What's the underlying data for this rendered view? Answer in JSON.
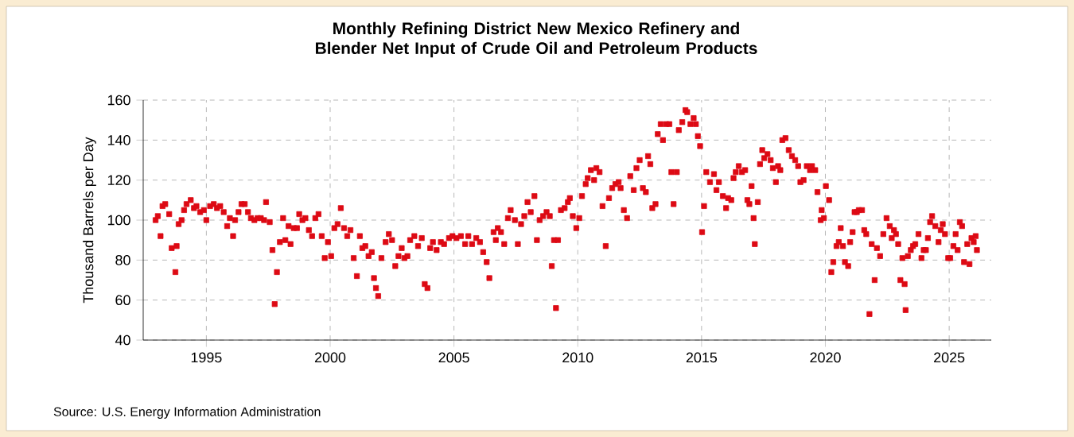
{
  "chart_data": {
    "type": "scatter",
    "title": "Monthly Refining District New Mexico Refinery and Blender Net Input of Crude Oil and Petroleum Products",
    "ylabel": "Thousand Barrels per Day",
    "annotations": [
      "Source: U.S. Energy Information Administration"
    ],
    "xlim": [
      1992.45,
      2026.7
    ],
    "xticks": [
      1995,
      2000,
      2005,
      2010,
      2015,
      2020,
      2025
    ],
    "ylim": [
      40,
      160
    ],
    "yticks": [
      40,
      60,
      80,
      100,
      120,
      140,
      160
    ],
    "grid": true,
    "marker": "square",
    "series": [
      {
        "color": "#dd0a14",
        "x": [
          1992.95,
          1993.04,
          1993.15,
          1993.23,
          1993.34,
          1993.5,
          1993.6,
          1993.75,
          1993.8,
          1993.88,
          1994.0,
          1994.1,
          1994.2,
          1994.37,
          1994.5,
          1994.6,
          1994.75,
          1994.9,
          1995.0,
          1995.15,
          1995.3,
          1995.43,
          1995.56,
          1995.7,
          1995.84,
          1995.95,
          1996.08,
          1996.16,
          1996.3,
          1996.42,
          1996.55,
          1996.68,
          1996.8,
          1996.94,
          1997.07,
          1997.2,
          1997.33,
          1997.41,
          1997.56,
          1997.67,
          1997.76,
          1997.85,
          1997.97,
          1998.1,
          1998.19,
          1998.32,
          1998.4,
          1998.53,
          1998.66,
          1998.75,
          1998.88,
          1999.0,
          1999.14,
          1999.27,
          1999.4,
          1999.53,
          1999.66,
          1999.78,
          1999.91,
          2000.04,
          2000.17,
          2000.3,
          2000.43,
          2000.56,
          2000.69,
          2000.82,
          2000.95,
          2001.08,
          2001.2,
          2001.3,
          2001.42,
          2001.55,
          2001.68,
          2001.77,
          2001.85,
          2001.94,
          2002.07,
          2002.24,
          2002.37,
          2002.5,
          2002.63,
          2002.76,
          2002.89,
          2003.0,
          2003.12,
          2003.23,
          2003.4,
          2003.55,
          2003.7,
          2003.82,
          2003.93,
          2004.04,
          2004.15,
          2004.3,
          2004.47,
          2004.6,
          2004.8,
          2004.94,
          2005.1,
          2005.28,
          2005.45,
          2005.58,
          2005.73,
          2005.9,
          2006.05,
          2006.18,
          2006.32,
          2006.43,
          2006.6,
          2006.69,
          2006.77,
          2006.9,
          2007.03,
          2007.18,
          2007.29,
          2007.46,
          2007.58,
          2007.71,
          2007.84,
          2007.97,
          2008.1,
          2008.25,
          2008.35,
          2008.46,
          2008.6,
          2008.74,
          2008.87,
          2008.95,
          2009.04,
          2009.12,
          2009.2,
          2009.32,
          2009.47,
          2009.6,
          2009.68,
          2009.8,
          2009.94,
          2010.06,
          2010.17,
          2010.32,
          2010.4,
          2010.53,
          2010.66,
          2010.75,
          2010.88,
          2011.0,
          2011.13,
          2011.26,
          2011.39,
          2011.52,
          2011.65,
          2011.73,
          2011.86,
          2011.99,
          2012.12,
          2012.26,
          2012.37,
          2012.5,
          2012.63,
          2012.75,
          2012.84,
          2012.93,
          2013.01,
          2013.14,
          2013.23,
          2013.35,
          2013.44,
          2013.57,
          2013.7,
          2013.78,
          2013.87,
          2014.0,
          2014.08,
          2014.22,
          2014.35,
          2014.42,
          2014.55,
          2014.68,
          2014.77,
          2014.85,
          2014.94,
          2015.02,
          2015.1,
          2015.19,
          2015.34,
          2015.5,
          2015.6,
          2015.7,
          2015.86,
          2015.99,
          2016.07,
          2016.2,
          2016.29,
          2016.38,
          2016.5,
          2016.63,
          2016.76,
          2016.85,
          2016.93,
          2017.02,
          2017.1,
          2017.15,
          2017.27,
          2017.36,
          2017.45,
          2017.53,
          2017.66,
          2017.79,
          2017.88,
          2018.0,
          2018.09,
          2018.18,
          2018.26,
          2018.39,
          2018.52,
          2018.65,
          2018.78,
          2018.9,
          2018.99,
          2019.12,
          2019.25,
          2019.38,
          2019.46,
          2019.59,
          2019.68,
          2019.81,
          2019.85,
          2019.94,
          2020.02,
          2020.15,
          2020.24,
          2020.32,
          2020.45,
          2020.54,
          2020.62,
          2020.71,
          2020.79,
          2020.92,
          2021.0,
          2021.1,
          2021.18,
          2021.27,
          2021.35,
          2021.48,
          2021.57,
          2021.65,
          2021.78,
          2021.87,
          2021.99,
          2022.08,
          2022.21,
          2022.34,
          2022.47,
          2022.6,
          2022.68,
          2022.77,
          2022.85,
          2022.94,
          2023.03,
          2023.11,
          2023.2,
          2023.24,
          2023.33,
          2023.45,
          2023.54,
          2023.63,
          2023.76,
          2023.88,
          2023.97,
          2024.06,
          2024.14,
          2024.23,
          2024.31,
          2024.44,
          2024.57,
          2024.66,
          2024.74,
          2024.83,
          2024.96,
          2025.04,
          2025.17,
          2025.26,
          2025.34,
          2025.43,
          2025.52,
          2025.6,
          2025.73,
          2025.82,
          2025.9,
          2025.99,
          2026.07,
          2026.12
        ],
        "values": [
          100,
          102,
          92,
          107,
          108,
          103,
          86,
          74,
          87,
          98,
          100,
          105,
          108,
          110,
          106,
          107,
          104,
          105,
          100,
          107,
          108,
          106,
          107,
          104,
          97,
          101,
          92,
          100,
          104,
          108,
          108,
          104,
          101,
          100,
          101,
          101,
          100,
          109,
          99,
          85,
          58,
          74,
          89,
          101,
          90,
          97,
          88,
          96,
          96,
          103,
          100,
          101,
          95,
          92,
          101,
          103,
          92,
          81,
          89,
          82,
          96,
          98,
          106,
          96,
          92,
          95,
          81,
          72,
          92,
          86,
          87,
          82,
          84,
          71,
          66,
          62,
          81,
          89,
          93,
          90,
          77,
          82,
          86,
          81,
          82,
          90,
          92,
          87,
          91,
          68,
          66,
          86,
          89,
          85,
          89,
          88,
          91,
          92,
          91,
          92,
          88,
          92,
          88,
          91,
          89,
          84,
          79,
          71,
          94,
          90,
          96,
          94,
          88,
          101,
          105,
          100,
          88,
          98,
          102,
          109,
          104,
          112,
          90,
          100,
          102,
          104,
          102,
          77,
          90,
          56,
          90,
          105,
          106,
          109,
          111,
          102,
          96,
          101,
          112,
          118,
          121,
          125,
          120,
          126,
          124,
          107,
          87,
          111,
          116,
          118,
          119,
          116,
          105,
          101,
          122,
          115,
          126,
          130,
          116,
          114,
          132,
          128,
          106,
          108,
          143,
          148,
          140,
          148,
          148,
          124,
          108,
          124,
          145,
          149,
          155,
          154,
          148,
          151,
          148,
          142,
          137,
          94,
          107,
          124,
          119,
          123,
          115,
          119,
          112,
          106,
          111,
          110,
          121,
          124,
          127,
          124,
          125,
          110,
          108,
          117,
          101,
          88,
          109,
          128,
          135,
          131,
          133,
          130,
          126,
          119,
          127,
          125,
          140,
          141,
          135,
          132,
          130,
          127,
          119,
          120,
          127,
          125,
          127,
          125,
          114,
          100,
          105,
          101,
          117,
          110,
          74,
          79,
          87,
          89,
          96,
          87,
          79,
          77,
          89,
          94,
          104,
          104,
          105,
          105,
          95,
          93,
          53,
          88,
          70,
          86,
          82,
          93,
          101,
          97,
          91,
          95,
          93,
          88,
          70,
          81,
          68,
          55,
          82,
          85,
          87,
          88,
          93,
          81,
          85,
          85,
          91,
          99,
          102,
          97,
          89,
          95,
          98,
          93,
          81,
          81,
          87,
          93,
          85,
          99,
          97,
          79,
          88,
          78,
          91,
          89,
          92,
          85
        ]
      }
    ]
  }
}
